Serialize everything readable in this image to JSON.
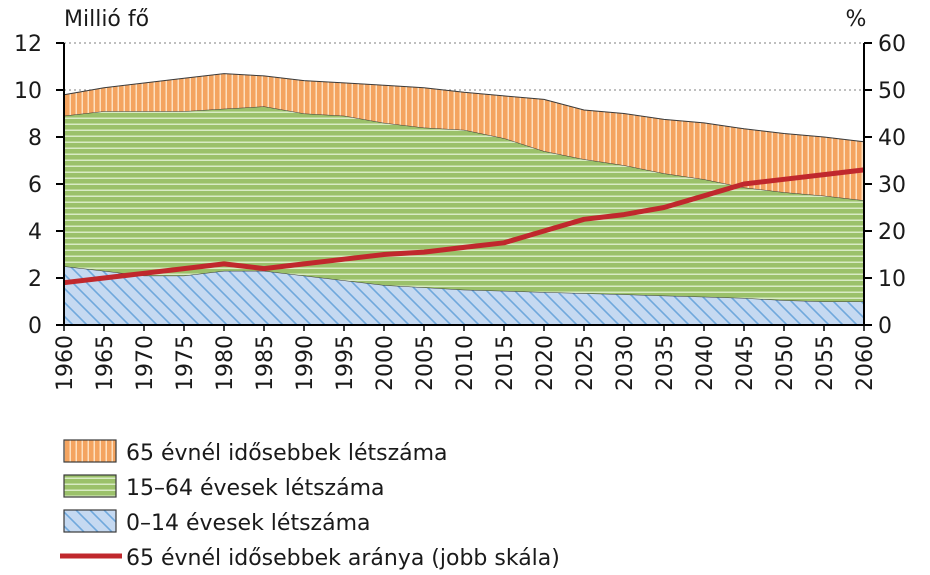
{
  "chart_data": {
    "type": "area",
    "y_left_unit": "Millió fő",
    "y_right_unit": "%",
    "ylim_left": [
      0,
      12
    ],
    "ylim_right": [
      0,
      60
    ],
    "yticks_left": [
      "0",
      "2",
      "4",
      "6",
      "8",
      "10",
      "12"
    ],
    "yticks_right": [
      "0",
      "10",
      "20",
      "30",
      "40",
      "50",
      "60"
    ],
    "xticks": [
      "1960",
      "1965",
      "1970",
      "1975",
      "1980",
      "1985",
      "1990",
      "1995",
      "2000",
      "2005",
      "2010",
      "2015",
      "2020",
      "2025",
      "2030",
      "2035",
      "2040",
      "2045",
      "2050",
      "2055",
      "2060"
    ],
    "x": [
      1960,
      1965,
      1970,
      1975,
      1980,
      1985,
      1990,
      1995,
      2000,
      2005,
      2010,
      2015,
      2020,
      2025,
      2030,
      2035,
      2040,
      2045,
      2050,
      2055,
      2060
    ],
    "series": [
      {
        "name": "0–14 évesek létszáma",
        "kind": "stacked-area",
        "color": "#c5d9f1",
        "hatch": "#6fa8dc",
        "values": [
          2.5,
          2.3,
          2.1,
          2.1,
          2.3,
          2.3,
          2.1,
          1.9,
          1.7,
          1.6,
          1.5,
          1.45,
          1.4,
          1.35,
          1.3,
          1.25,
          1.2,
          1.15,
          1.05,
          1.0,
          1.0
        ]
      },
      {
        "name": "15–64 évesek létszáma",
        "kind": "stacked-area",
        "color": "#9bc16a",
        "hatch": "#d8ebc4",
        "values": [
          6.4,
          6.8,
          7.0,
          7.0,
          6.9,
          7.0,
          6.9,
          7.0,
          6.9,
          6.8,
          6.8,
          6.5,
          6.0,
          5.7,
          5.5,
          5.2,
          5.0,
          4.7,
          4.6,
          4.5,
          4.3
        ]
      },
      {
        "name": "65 évnél idősebbek létszáma",
        "kind": "stacked-area",
        "color": "#f4a460",
        "hatch": "#fde0c0",
        "values": [
          0.9,
          1.0,
          1.2,
          1.4,
          1.5,
          1.3,
          1.4,
          1.4,
          1.6,
          1.7,
          1.6,
          1.8,
          2.2,
          2.1,
          2.2,
          2.3,
          2.4,
          2.5,
          2.5,
          2.5,
          2.5
        ]
      },
      {
        "name": "65 évnél idősebbek aránya (jobb skála)",
        "kind": "line",
        "axis": "right",
        "color": "#c0282d",
        "values": [
          9,
          10,
          11,
          12,
          13,
          12,
          13,
          14,
          15,
          15.5,
          16.5,
          17.5,
          20,
          22.5,
          23.5,
          25,
          27.5,
          30,
          31,
          32,
          33
        ]
      }
    ],
    "legend_order": [
      2,
      1,
      0,
      3
    ],
    "grid": "dotted at 10 and 12",
    "legend_position": "bottom-left"
  }
}
